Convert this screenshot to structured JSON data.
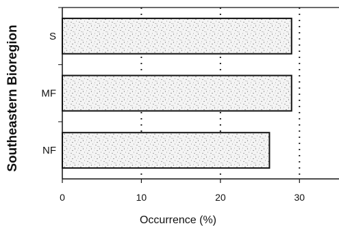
{
  "chart_data": {
    "type": "bar",
    "orientation": "horizontal",
    "categories": [
      "S",
      "MF",
      "NF"
    ],
    "values": [
      29,
      29,
      26.2
    ],
    "xlabel": "Occurrence (%)",
    "ylabel": "Southeastern Bioregion",
    "xlim": [
      0,
      35
    ],
    "xticks": [
      "0",
      "10",
      "20",
      "30"
    ],
    "grid": "vertical dotted",
    "bar_fill": "stippled gray"
  }
}
